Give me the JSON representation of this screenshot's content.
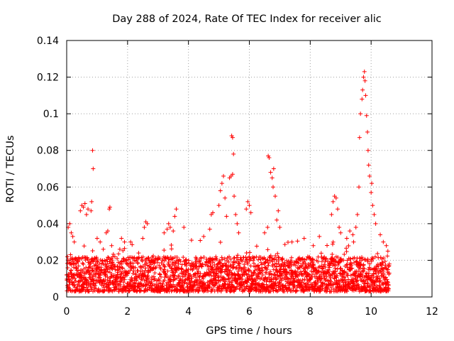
{
  "chart_data": {
    "type": "scatter",
    "title": "Day 288 of 2024, Rate Of TEC Index for receiver alic",
    "xlabel": "GPS time / hours",
    "ylabel": "ROTI / TECUs",
    "xlim": [
      0,
      12
    ],
    "ylim": [
      0,
      0.14
    ],
    "xticks": [
      0,
      2,
      4,
      6,
      8,
      10,
      12
    ],
    "xtick_labels": [
      "0",
      "2",
      "4",
      "6",
      "8",
      "10",
      "12"
    ],
    "yticks": [
      0,
      0.02,
      0.04,
      0.06,
      0.08,
      0.1,
      0.12,
      0.14
    ],
    "ytick_labels": [
      "0",
      "0.02",
      "0.04",
      "0.06",
      "0.08",
      "0.1",
      "0.12",
      "0.14"
    ],
    "grid": true,
    "marker": "+",
    "color": "#ff0000",
    "data_span_hours": [
      0,
      10.6
    ],
    "background_band": [
      0.003,
      0.022
    ],
    "series": [
      {
        "name": "ROTI",
        "points": [
          [
            0.05,
            0.038
          ],
          [
            0.1,
            0.04
          ],
          [
            0.15,
            0.035
          ],
          [
            0.2,
            0.033
          ],
          [
            0.25,
            0.03
          ],
          [
            0.45,
            0.047
          ],
          [
            0.5,
            0.05
          ],
          [
            0.55,
            0.049
          ],
          [
            0.6,
            0.051
          ],
          [
            0.65,
            0.045
          ],
          [
            0.7,
            0.048
          ],
          [
            0.8,
            0.047
          ],
          [
            0.82,
            0.052
          ],
          [
            0.85,
            0.08
          ],
          [
            0.87,
            0.07
          ],
          [
            1.0,
            0.032
          ],
          [
            1.1,
            0.03
          ],
          [
            1.3,
            0.035
          ],
          [
            1.4,
            0.048
          ],
          [
            1.42,
            0.049
          ],
          [
            1.35,
            0.036
          ],
          [
            1.8,
            0.032
          ],
          [
            1.9,
            0.03
          ],
          [
            2.1,
            0.03
          ],
          [
            2.5,
            0.032
          ],
          [
            2.55,
            0.038
          ],
          [
            2.6,
            0.041
          ],
          [
            2.65,
            0.04
          ],
          [
            3.2,
            0.035
          ],
          [
            3.3,
            0.037
          ],
          [
            3.35,
            0.04
          ],
          [
            3.4,
            0.038
          ],
          [
            3.5,
            0.036
          ],
          [
            3.55,
            0.044
          ],
          [
            3.6,
            0.048
          ],
          [
            3.85,
            0.038
          ],
          [
            4.1,
            0.031
          ],
          [
            4.5,
            0.033
          ],
          [
            4.7,
            0.037
          ],
          [
            4.75,
            0.045
          ],
          [
            4.8,
            0.046
          ],
          [
            5.0,
            0.05
          ],
          [
            5.05,
            0.058
          ],
          [
            5.1,
            0.062
          ],
          [
            5.15,
            0.066
          ],
          [
            5.2,
            0.054
          ],
          [
            5.25,
            0.044
          ],
          [
            5.35,
            0.065
          ],
          [
            5.4,
            0.066
          ],
          [
            5.45,
            0.067
          ],
          [
            5.42,
            0.088
          ],
          [
            5.45,
            0.087
          ],
          [
            5.48,
            0.078
          ],
          [
            5.5,
            0.055
          ],
          [
            5.55,
            0.045
          ],
          [
            5.6,
            0.04
          ],
          [
            5.65,
            0.035
          ],
          [
            5.9,
            0.048
          ],
          [
            5.95,
            0.052
          ],
          [
            6.0,
            0.05
          ],
          [
            6.05,
            0.046
          ],
          [
            6.5,
            0.035
          ],
          [
            6.6,
            0.038
          ],
          [
            6.62,
            0.077
          ],
          [
            6.65,
            0.076
          ],
          [
            6.7,
            0.068
          ],
          [
            6.75,
            0.065
          ],
          [
            6.8,
            0.07
          ],
          [
            6.78,
            0.06
          ],
          [
            6.85,
            0.055
          ],
          [
            6.9,
            0.042
          ],
          [
            6.95,
            0.047
          ],
          [
            7.0,
            0.038
          ],
          [
            7.4,
            0.03
          ],
          [
            7.8,
            0.032
          ],
          [
            8.1,
            0.028
          ],
          [
            8.3,
            0.033
          ],
          [
            8.7,
            0.045
          ],
          [
            8.75,
            0.052
          ],
          [
            8.8,
            0.055
          ],
          [
            8.85,
            0.054
          ],
          [
            8.9,
            0.048
          ],
          [
            8.95,
            0.038
          ],
          [
            9.0,
            0.035
          ],
          [
            9.2,
            0.032
          ],
          [
            9.3,
            0.036
          ],
          [
            9.4,
            0.034
          ],
          [
            9.5,
            0.038
          ],
          [
            9.55,
            0.045
          ],
          [
            9.6,
            0.06
          ],
          [
            9.62,
            0.087
          ],
          [
            9.65,
            0.1
          ],
          [
            9.7,
            0.108
          ],
          [
            9.72,
            0.113
          ],
          [
            9.75,
            0.12
          ],
          [
            9.78,
            0.123
          ],
          [
            9.8,
            0.118
          ],
          [
            9.82,
            0.11
          ],
          [
            9.85,
            0.099
          ],
          [
            9.88,
            0.09
          ],
          [
            9.9,
            0.08
          ],
          [
            9.92,
            0.072
          ],
          [
            9.95,
            0.066
          ],
          [
            10.0,
            0.057
          ],
          [
            10.02,
            0.062
          ],
          [
            10.05,
            0.05
          ],
          [
            10.1,
            0.045
          ],
          [
            10.15,
            0.04
          ],
          [
            10.3,
            0.034
          ],
          [
            10.4,
            0.03
          ],
          [
            10.5,
            0.028
          ],
          [
            10.55,
            0.025
          ]
        ]
      }
    ]
  }
}
